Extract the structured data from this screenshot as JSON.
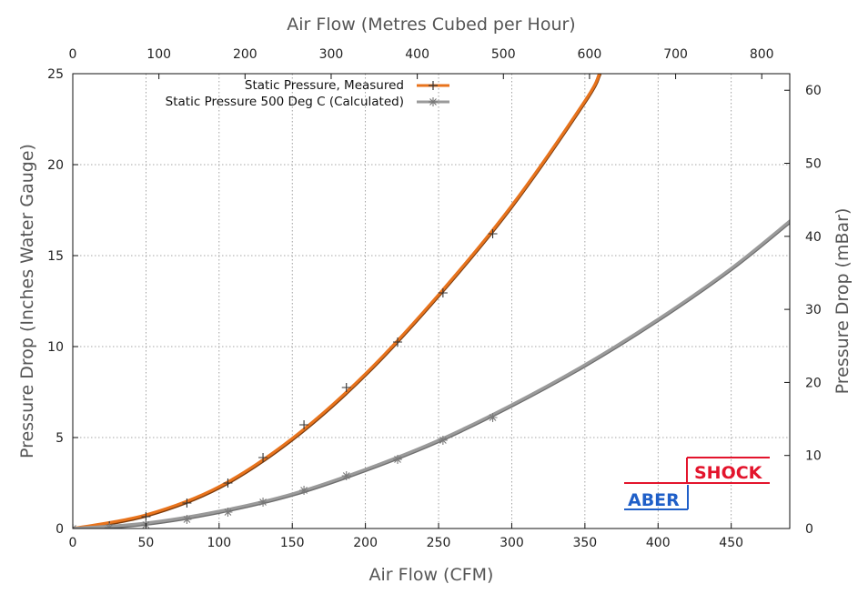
{
  "chart_data": {
    "type": "line",
    "title": "",
    "xlabel": "Air Flow (CFM)",
    "x2label": "Air Flow (Metres Cubed per Hour)",
    "ylabel": "Pressure Drop (Inches Water Gauge)",
    "y2label": "Pressure Drop (mBar)",
    "xlim": [
      0,
      490
    ],
    "ylim": [
      0,
      25
    ],
    "x2lim": [
      0,
      832.5
    ],
    "y2lim": [
      0,
      62.27
    ],
    "xticks": [
      0,
      50,
      100,
      150,
      200,
      250,
      300,
      350,
      400,
      450
    ],
    "yticks": [
      0,
      5,
      10,
      15,
      20,
      25
    ],
    "x2ticks": [
      0,
      100,
      200,
      300,
      400,
      500,
      600,
      700,
      800
    ],
    "y2ticks": [
      0,
      10,
      20,
      30,
      40,
      50,
      60
    ],
    "grid": true,
    "legend_position": "top-center",
    "series": [
      {
        "name": "Static Pressure, Measured",
        "color": "#e8731c",
        "marker": "plus",
        "points": [
          {
            "x": 0,
            "y": 0
          },
          {
            "x": 25,
            "y": 0.15
          },
          {
            "x": 50,
            "y": 0.65
          },
          {
            "x": 78,
            "y": 1.4
          },
          {
            "x": 106,
            "y": 2.5
          },
          {
            "x": 130,
            "y": 3.9
          },
          {
            "x": 158,
            "y": 5.7
          },
          {
            "x": 187,
            "y": 7.75
          },
          {
            "x": 222,
            "y": 10.25
          },
          {
            "x": 253,
            "y": 12.95
          },
          {
            "x": 287,
            "y": 16.2
          }
        ],
        "fit_curve": {
          "x": [
            0,
            50,
            100,
            150,
            200,
            250,
            300,
            350,
            360
          ],
          "y": [
            0,
            0.75,
            2.3,
            4.95,
            8.5,
            12.85,
            17.75,
            23.5,
            25
          ]
        }
      },
      {
        "name": "Static Pressure 500 Deg C (Calculated)",
        "color": "#9a9a9a",
        "marker": "asterisk",
        "points": [
          {
            "x": 0,
            "y": 0
          },
          {
            "x": 25,
            "y": 0.05
          },
          {
            "x": 50,
            "y": 0.2
          },
          {
            "x": 78,
            "y": 0.5
          },
          {
            "x": 106,
            "y": 0.9
          },
          {
            "x": 130,
            "y": 1.45
          },
          {
            "x": 158,
            "y": 2.1
          },
          {
            "x": 187,
            "y": 2.9
          },
          {
            "x": 222,
            "y": 3.8
          },
          {
            "x": 253,
            "y": 4.85
          },
          {
            "x": 287,
            "y": 6.1
          }
        ],
        "fit_curve": {
          "x": [
            0,
            50,
            100,
            150,
            200,
            250,
            300,
            350,
            400,
            450,
            490
          ],
          "y": [
            0,
            0.3,
            0.95,
            1.9,
            3.25,
            4.85,
            6.8,
            9.0,
            11.5,
            14.3,
            16.9
          ]
        }
      }
    ]
  },
  "logo": {
    "part1": "ABER",
    "part2": "SHOCK",
    "color1": "#1f5fc8",
    "color2": "#e3142c"
  }
}
